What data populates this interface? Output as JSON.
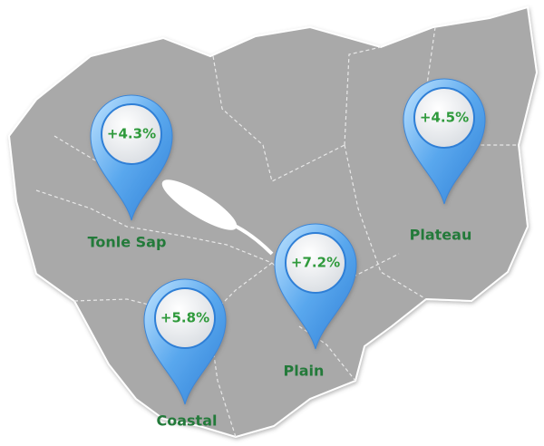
{
  "regions": [
    {
      "name": "Tonle Sap",
      "value_label": "+4.3%"
    },
    {
      "name": "Plateau",
      "value_label": "+4.5%"
    },
    {
      "name": "Plain",
      "value_label": "+7.2%"
    },
    {
      "name": "Coastal",
      "value_label": "+5.8%"
    }
  ]
}
